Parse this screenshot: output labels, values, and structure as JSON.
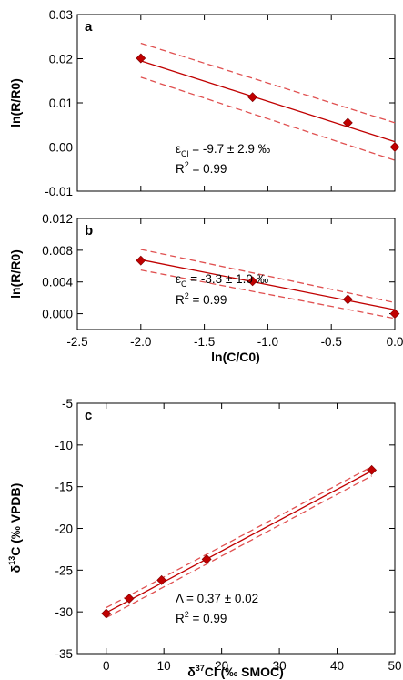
{
  "chart_data": [
    {
      "type": "scatter",
      "panel_label": "a",
      "ylabel": "ln(R/R0)",
      "xlabel": "",
      "xlim": [
        -2.5,
        0.0
      ],
      "ylim": [
        -0.01,
        0.03
      ],
      "x_ticks": [
        -2.5,
        -2.0,
        -1.5,
        -1.0,
        -0.5,
        0.0
      ],
      "y_ticks": [
        "0.03",
        "0.02",
        "0.01",
        "0.00",
        "-0.01"
      ],
      "show_x_tick_labels": false,
      "grid": false,
      "series": [
        {
          "x": [
            -2.0,
            -1.12,
            -0.37,
            0.0
          ],
          "y": [
            0.0201,
            0.0113,
            0.0055,
            0.0
          ]
        }
      ],
      "fit": {
        "x_start": -2.0,
        "x_end": 0.0,
        "y_start": 0.0195,
        "y_end": 0.0012
      },
      "ci_upper": {
        "x_start": -2.0,
        "x_end": 0.0,
        "y_start": 0.0235,
        "y_end": 0.0055
      },
      "ci_lower": {
        "x_start": -2.0,
        "x_end": 0.0,
        "y_start": 0.0158,
        "y_end": -0.003
      },
      "annotation": {
        "line1_symbol": "ε",
        "line1_sub": "Cl",
        "line1_rest": " = -9.7 ± 2.9 ‰",
        "line2_main": "R",
        "line2_sup": "2",
        "line2_rest": " = 0.99"
      },
      "colors": {
        "marker": "#c00000",
        "line": "#c00000",
        "fit": "#e05050"
      }
    },
    {
      "type": "scatter",
      "panel_label": "b",
      "ylabel": "ln(R/R0)",
      "xlabel": "ln(C/C0)",
      "xlim": [
        -2.5,
        0.0
      ],
      "ylim": [
        -0.002,
        0.012
      ],
      "x_ticks": [
        "-2.5",
        "-2.0",
        "-1.5",
        "-1.0",
        "-0.5",
        "0.0"
      ],
      "y_ticks": [
        "0.012",
        "0.008",
        "0.004",
        "0.000"
      ],
      "show_x_tick_labels": true,
      "grid": false,
      "series": [
        {
          "x": [
            -2.0,
            -1.12,
            -0.37,
            0.0
          ],
          "y": [
            0.0067,
            0.0041,
            0.0018,
            0.0
          ]
        }
      ],
      "fit": {
        "x_start": -2.0,
        "x_end": 0.0,
        "y_start": 0.0068,
        "y_end": 0.0005
      },
      "ci_upper": {
        "x_start": -2.0,
        "x_end": 0.0,
        "y_start": 0.0081,
        "y_end": 0.0014
      },
      "ci_lower": {
        "x_start": -2.0,
        "x_end": 0.0,
        "y_start": 0.0055,
        "y_end": -0.0006
      },
      "annotation": {
        "line1_symbol": "ε",
        "line1_sub": "C",
        "line1_rest": " = -3.3 ± 1.0 ‰",
        "line2_main": "R",
        "line2_sup": "2",
        "line2_rest": " = 0.99"
      },
      "colors": {
        "marker": "#c00000",
        "line": "#c00000",
        "fit": "#e05050"
      }
    },
    {
      "type": "scatter",
      "panel_label": "c",
      "ylabel_prefix": "δ",
      "ylabel_sup": "13",
      "ylabel_rest": "C (‰ VPDB)",
      "xlabel_prefix": "δ",
      "xlabel_sup": "37",
      "xlabel_rest": "Cl (‰ SMOC)",
      "xlim": [
        -5,
        50
      ],
      "ylim": [
        -35,
        -5
      ],
      "x_ticks": [
        "0",
        "10",
        "20",
        "30",
        "40",
        "50"
      ],
      "y_ticks": [
        "-5",
        "-10",
        "-15",
        "-20",
        "-25",
        "-30",
        "-35"
      ],
      "show_x_tick_labels": true,
      "grid": false,
      "series": [
        {
          "x": [
            0.0,
            4.0,
            9.6,
            17.4,
            46.0
          ],
          "y": [
            -30.2,
            -28.4,
            -26.2,
            -23.7,
            -13.0
          ]
        }
      ],
      "fit": {
        "x_start": 0.0,
        "x_end": 46.0,
        "y_start": -30.1,
        "y_end": -13.1
      },
      "ci_upper": {
        "x_start": 0.0,
        "x_end": 46.0,
        "y_start": -29.5,
        "y_end": -12.6
      },
      "ci_lower": {
        "x_start": 0.0,
        "x_end": 46.0,
        "y_start": -30.7,
        "y_end": -13.7
      },
      "annotation": {
        "line1_symbol": "Λ",
        "line1_sub": "",
        "line1_rest": " = 0.37 ± 0.02",
        "line2_main": "R",
        "line2_sup": "2",
        "line2_rest": " = 0.99"
      },
      "colors": {
        "marker": "#c00000",
        "line": "#c00000",
        "fit": "#e05050"
      }
    }
  ]
}
